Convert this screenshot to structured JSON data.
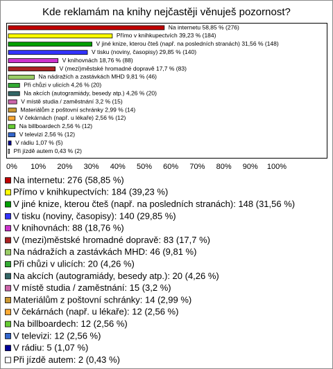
{
  "chart_data": {
    "type": "bar",
    "orientation": "horizontal",
    "title": "Kde reklamám na knihy nejčastěji věnuješ pozornost?",
    "values": [
      58.85,
      39.23,
      31.56,
      29.85,
      18.76,
      17.7,
      9.81,
      4.26,
      4.26,
      3.2,
      2.99,
      2.56,
      2.56,
      2.56,
      1.07,
      0.43
    ],
    "bar_labels": [
      "Na internetu 58,85 % (276)",
      "Přímo v knihkupectvích 39,23 % (184)",
      "V jiné knize, kterou čteš (např. na posledních stranách) 31,56 % (148)",
      "V tisku (noviny, časopisy) 29,85 % (140)",
      "V knihovnách 18,76 % (88)",
      "V (mezi)městské hromadné dopravě 17,7 % (83)",
      "Na nádražích a zastávkách MHD 9,81 % (46)",
      "Při chůzi v ulicích 4,26 % (20)",
      "Na akcích (autogramiády, besedy atp.) 4,26 % (20)",
      "V místě studia / zaměstnání 3,2 % (15)",
      "Materiálům z poštovní schránky 2,99 % (14)",
      "V čekárnách (např. u lékaře) 2,56 % (12)",
      "Na billboardech 2,56 % (12)",
      "V televizi 2,56 % (12)",
      "V rádiu 1,07 % (5)",
      "Při jízdě autem 0,43 % (2)"
    ],
    "legend_labels": [
      "Na internetu: 276 (58,85 %)",
      "Přímo v knihkupectvích: 184 (39,23 %)",
      "V jiné knize, kterou čteš (např. na posledních stranách): 148 (31,56 %)",
      "V tisku (noviny, časopisy): 140 (29,85 %)",
      "V knihovnách: 88 (18,76 %)",
      "V (mezi)městské hromadné dopravě: 83 (17,7 %)",
      "Na nádražích a zastávkách MHD: 46 (9,81 %)",
      "Při chůzi v ulicích: 20 (4,26 %)",
      "Na akcích (autogramiády, besedy atp.): 20 (4,26 %)",
      "V místě studia / zaměstnání: 15 (3,2 %)",
      "Materiálům z poštovní schránky: 14 (2,99 %)",
      "V čekárnách (např. u lékaře): 12 (2,56 %)",
      "Na billboardech: 12 (2,56 %)",
      "V televizi: 12 (2,56 %)",
      "V rádiu: 5 (1,07 %)",
      "Při jízdě autem: 2 (0,43 %)"
    ],
    "colors": [
      "#c00000",
      "#ffff00",
      "#00a000",
      "#3333ff",
      "#cc33cc",
      "#aa2222",
      "#99cc66",
      "#33aa33",
      "#336666",
      "#cc66aa",
      "#cc9933",
      "#ffaa33",
      "#66cc33",
      "#3366cc",
      "#000099",
      "#ffffff"
    ],
    "xlim": [
      0,
      100
    ],
    "xticks": [
      {
        "value": 0,
        "label": "0%"
      },
      {
        "value": 10,
        "label": "10%"
      },
      {
        "value": 20,
        "label": "20%"
      },
      {
        "value": 30,
        "label": "30%"
      },
      {
        "value": 40,
        "label": "40%"
      },
      {
        "value": 50,
        "label": "50%"
      },
      {
        "value": 60,
        "label": "60%"
      },
      {
        "value": 70,
        "label": "70%"
      },
      {
        "value": 80,
        "label": "80%"
      },
      {
        "value": 90,
        "label": "90%"
      },
      {
        "value": 100,
        "label": "100%"
      }
    ]
  }
}
